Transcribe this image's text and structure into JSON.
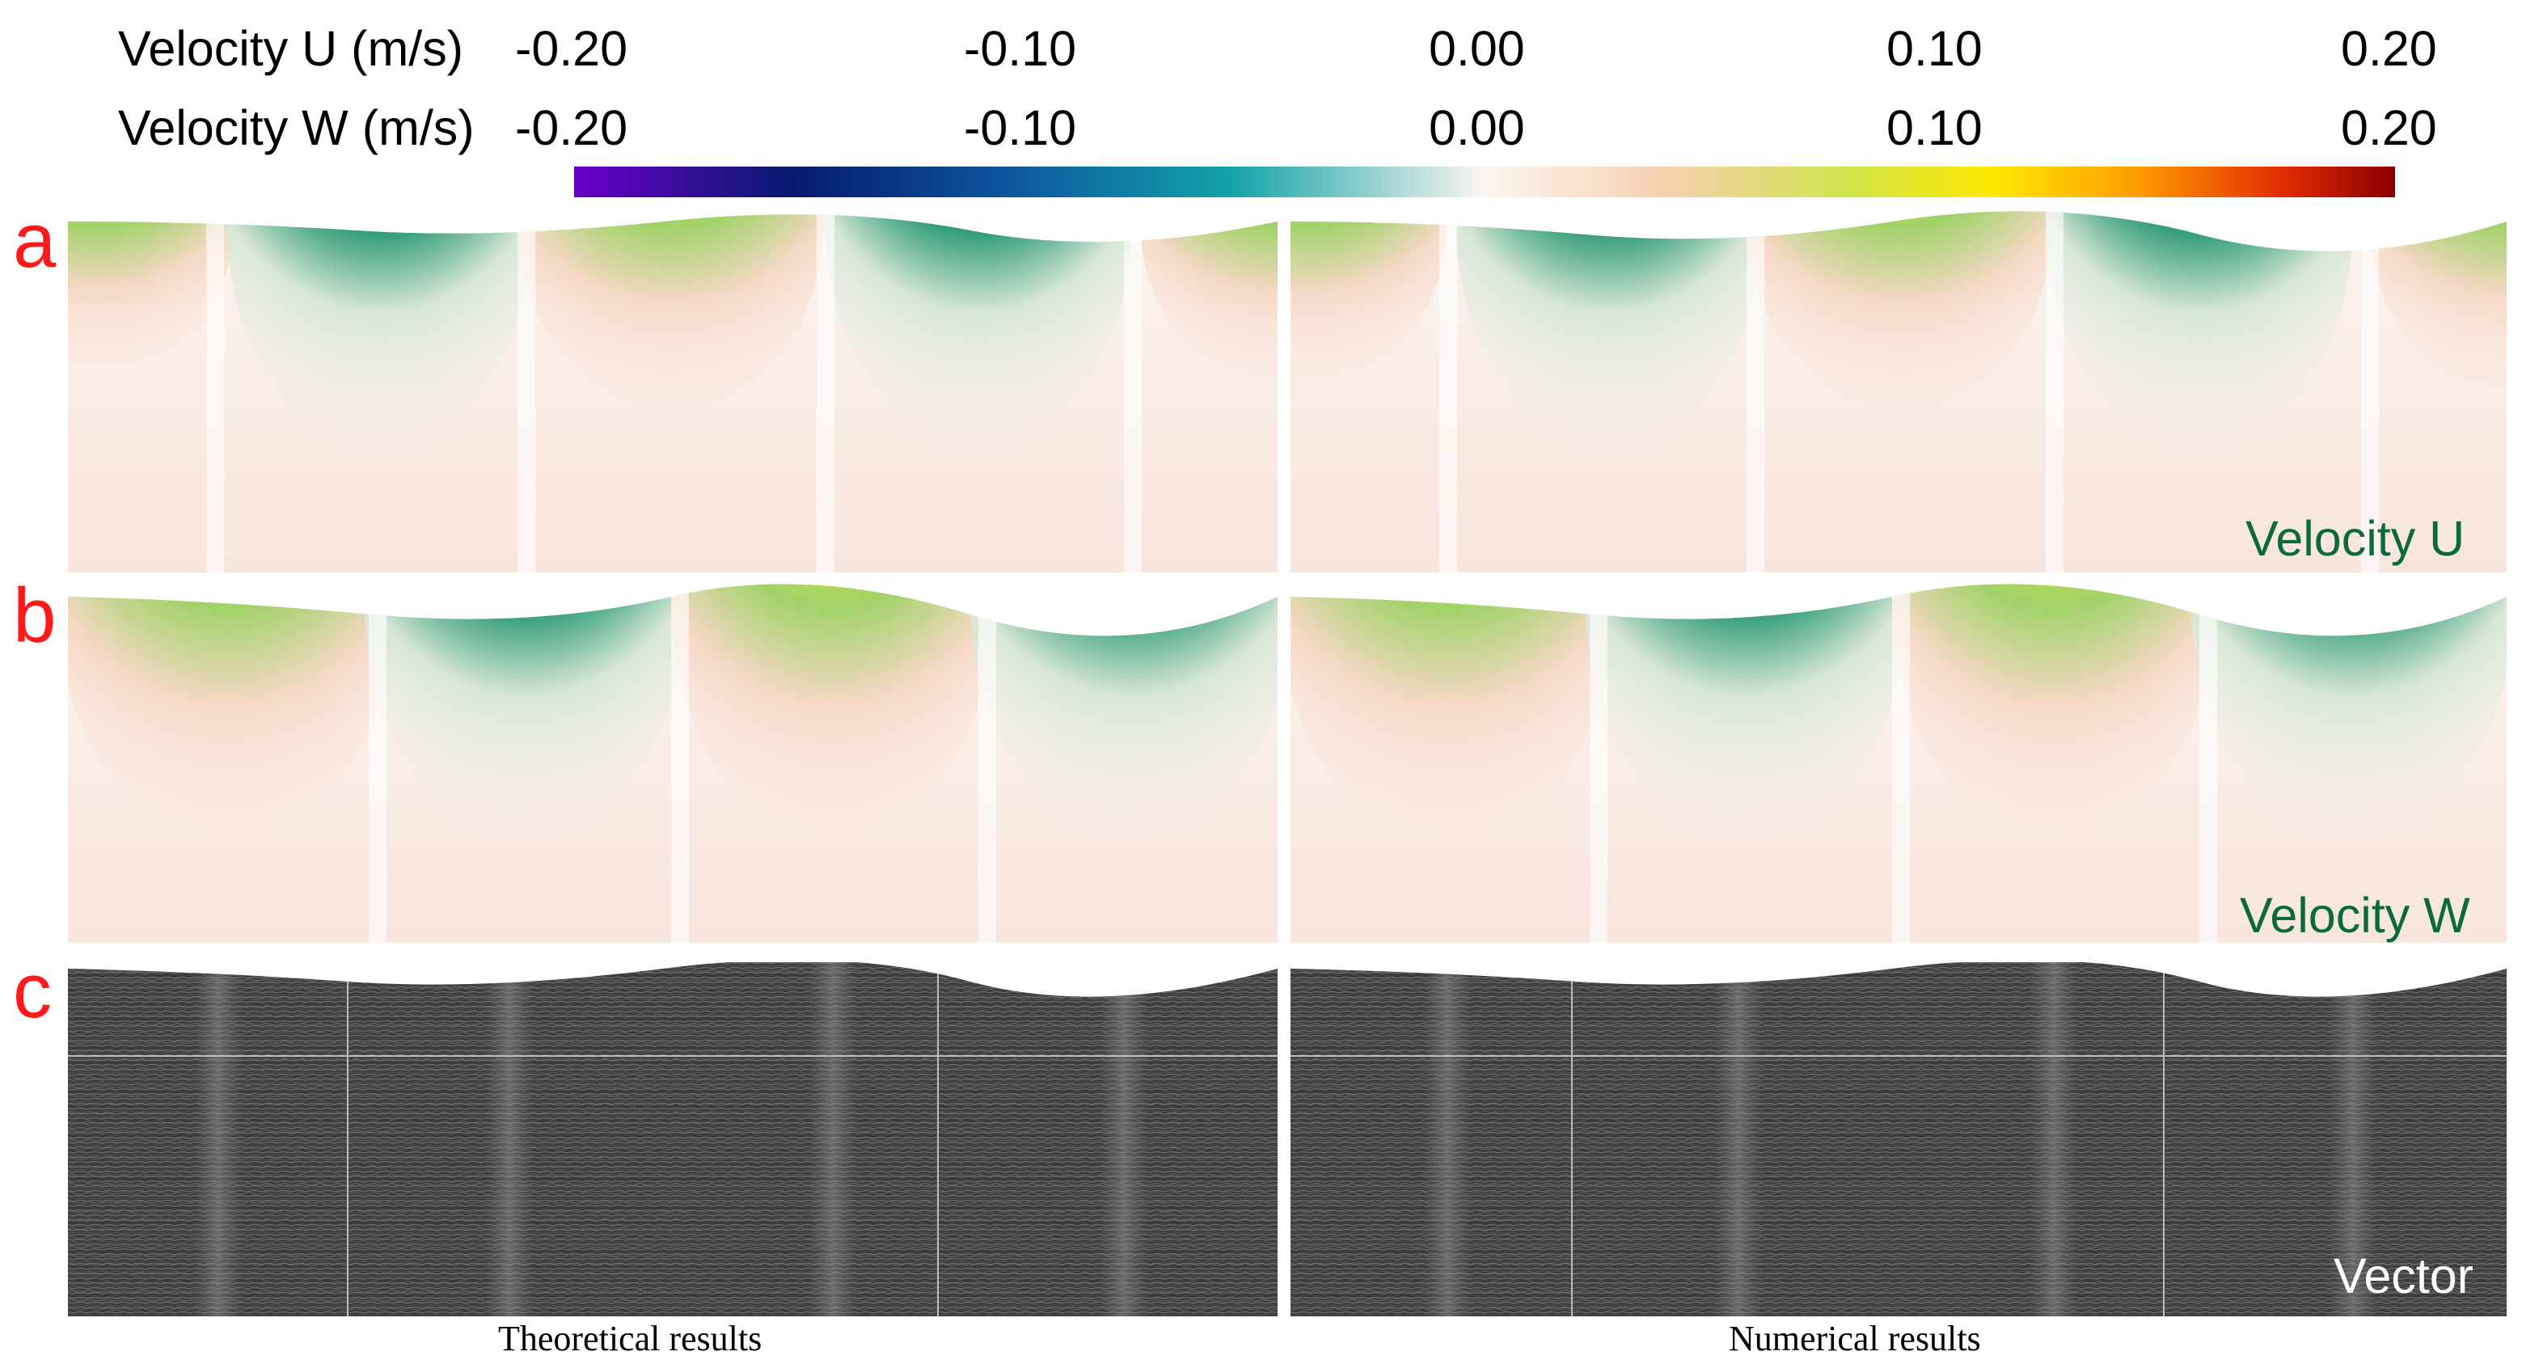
{
  "colorbar": {
    "rows": [
      {
        "label": "Velocity U (m/s)",
        "ticks": [
          "-0.20",
          "-0.10",
          "0.00",
          "0.10",
          "0.20"
        ]
      },
      {
        "label": "Velocity W (m/s)",
        "ticks": [
          "-0.20",
          "-0.10",
          "0.00",
          "0.10",
          "0.20"
        ]
      }
    ],
    "range": [
      -0.2,
      0.2
    ],
    "colormap": [
      "#6a00c8",
      "#061a6e",
      "#0d57a0",
      "#12a2a8",
      "#fbf6f0",
      "#f7cfae",
      "#cfe44a",
      "#ffe800",
      "#ff9a00",
      "#e02a00",
      "#8a0000"
    ]
  },
  "panels": [
    {
      "letter": "a",
      "label": "Velocity U"
    },
    {
      "letter": "b",
      "label": "Velocity W"
    },
    {
      "letter": "c",
      "label": "Vector"
    }
  ],
  "captions": {
    "left": "Theoretical results",
    "right": "Numerical results"
  }
}
